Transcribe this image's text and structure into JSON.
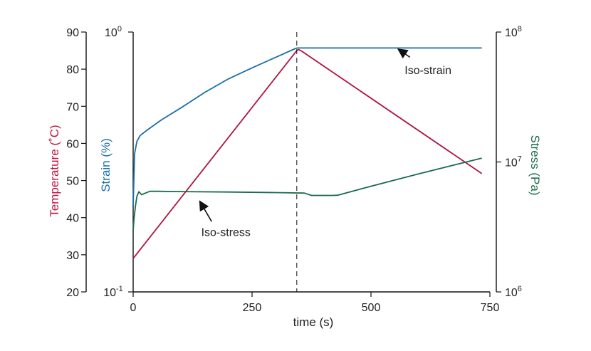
{
  "chart_data": {
    "type": "line",
    "xlabel": "time (s)",
    "xlim": [
      0,
      750
    ],
    "x_ticks": [
      "0",
      "250",
      "500",
      "750"
    ],
    "x_tick_values": [
      0,
      250,
      500,
      750
    ],
    "axes": {
      "temperature": {
        "label": "Temperature (˚C)",
        "side": "left-outer",
        "color": "#c0143c",
        "ylim": [
          20,
          90
        ],
        "ticks": [
          "90",
          "80",
          "70",
          "60",
          "50",
          "40",
          "30",
          "20"
        ],
        "tick_values": [
          90,
          80,
          70,
          60,
          50,
          40,
          30,
          20
        ]
      },
      "strain": {
        "label": "Strain (%)",
        "side": "left-inner",
        "color": "#1a6fa8",
        "scale": "log",
        "ylim": [
          0.1,
          1
        ],
        "ticks": [
          {
            "base": "10",
            "exp": "0",
            "value": 1
          },
          {
            "base": "10",
            "exp": "-1",
            "value": 0.1
          }
        ]
      },
      "stress": {
        "label": "Stress (Pa)",
        "side": "right",
        "color": "#1b6b4a",
        "scale": "log",
        "ylim": [
          1000000,
          100000000
        ],
        "ticks": [
          {
            "base": "10",
            "exp": "8",
            "value": 100000000
          },
          {
            "base": "10",
            "exp": "7",
            "value": 10000000
          },
          {
            "base": "10",
            "exp": "6",
            "value": 1000000
          }
        ]
      }
    },
    "series": [
      {
        "axis": "temperature",
        "color": "#b0133e",
        "x": [
          0,
          344,
          348,
          355,
          733
        ],
        "y": [
          29,
          85,
          85.3,
          84.8,
          51.9
        ]
      },
      {
        "axis": "strain",
        "color": "#1a6fa8",
        "x": [
          0,
          3,
          8,
          15,
          30,
          60,
          100,
          150,
          200,
          250,
          300,
          340,
          345,
          733
        ],
        "y": [
          0.215,
          0.34,
          0.38,
          0.4,
          0.42,
          0.46,
          0.51,
          0.585,
          0.66,
          0.728,
          0.8,
          0.862,
          0.868,
          0.868
        ]
      },
      {
        "axis": "stress",
        "color": "#1b6b4a",
        "x": [
          0,
          2,
          5,
          8,
          12,
          18,
          25,
          35,
          50,
          100,
          200,
          300,
          360,
          375,
          420,
          430,
          500,
          600,
          733
        ],
        "y": [
          3000000,
          3700000,
          4600000,
          5450000,
          5900000,
          5600000,
          5750000,
          5950000,
          5950000,
          5920000,
          5870000,
          5810000,
          5760000,
          5530000,
          5530000,
          5550000,
          6500000,
          8100000,
          10700000
        ]
      }
    ],
    "annotations": {
      "vline_x": 344,
      "iso_strain": {
        "text": "Iso-strain",
        "x": 620,
        "strain_value": 0.69,
        "arrow_from": [
          582,
          0.8
        ],
        "arrow_to": [
          557,
          0.86
        ]
      },
      "iso_stress": {
        "text": "Iso-stress",
        "x": 195,
        "stress_value": 2700000,
        "arrow_from": [
          165,
          3480000
        ],
        "arrow_to": [
          140,
          5000000
        ]
      }
    }
  }
}
